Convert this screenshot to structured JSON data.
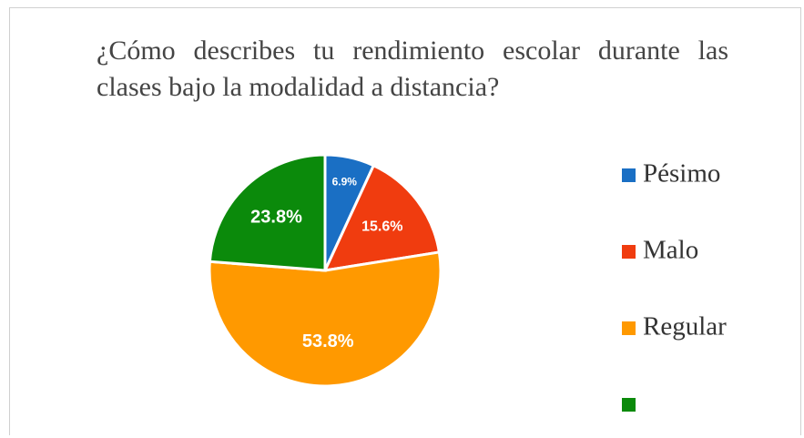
{
  "chart_data": {
    "type": "pie",
    "title": "¿Cómo describes tu rendimiento escolar durante las clases bajo la modalidad a distancia?",
    "categories": [
      "Pésimo",
      "Malo",
      "Regular",
      null
    ],
    "values": [
      6.9,
      15.6,
      53.8,
      23.8
    ],
    "value_labels": [
      "6.9%",
      "15.6%",
      "53.8%",
      "23.8%"
    ],
    "colors": [
      "#1a6fc4",
      "#f03c0f",
      "#ff9900",
      "#0b8a0b"
    ],
    "legend": "right"
  }
}
